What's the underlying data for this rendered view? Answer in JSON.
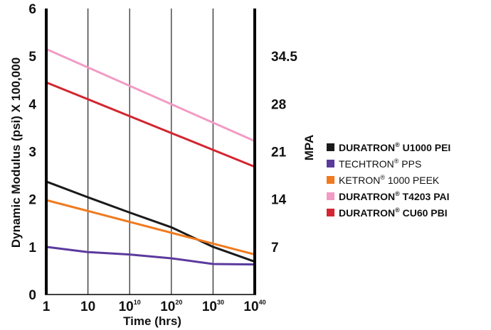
{
  "chart_data": {
    "type": "line",
    "x_ticks": [
      "1",
      "10",
      "10^10",
      "10^20",
      "10^30",
      "10^40"
    ],
    "x_tick_display": [
      {
        "base": "1",
        "exp": ""
      },
      {
        "base": "10",
        "exp": ""
      },
      {
        "base": "10",
        "exp": "10"
      },
      {
        "base": "10",
        "exp": "20"
      },
      {
        "base": "10",
        "exp": "30"
      },
      {
        "base": "10",
        "exp": "40"
      }
    ],
    "xlabel": "Time (hrs)",
    "ylabel": "Dynamic Modulus  (psi) X 100,000",
    "ylim": [
      0,
      6
    ],
    "y_ticks": [
      0,
      1,
      2,
      3,
      4,
      5,
      6
    ],
    "y2label": "MPA",
    "y2_ticks": [
      {
        "label": "7",
        "at": 1
      },
      {
        "label": "14",
        "at": 2
      },
      {
        "label": "21",
        "at": 3
      },
      {
        "label": "28",
        "at": 4
      },
      {
        "label": "34.5",
        "at": 5
      }
    ],
    "grid": "vertical",
    "legend_position": "right",
    "series": [
      {
        "name": "DURATRON® U1000 PEI",
        "name_main": "DURATRON",
        "name_rest": " U1000 PEI",
        "color": "#1a1a1a",
        "legend_bold": true,
        "points": [
          [
            0,
            2.37
          ],
          [
            1,
            2.04
          ],
          [
            2,
            1.72
          ],
          [
            3,
            1.41
          ],
          [
            4,
            1.0
          ],
          [
            5,
            0.69
          ]
        ]
      },
      {
        "name": "TECHTRON® PPS",
        "name_main": "TECHTRON",
        "name_rest": " PPS",
        "color": "#5b3a9e",
        "legend_bold": false,
        "points": [
          [
            0,
            1.0
          ],
          [
            1,
            0.89
          ],
          [
            2,
            0.84
          ],
          [
            3,
            0.76
          ],
          [
            4,
            0.64
          ],
          [
            5,
            0.63
          ]
        ]
      },
      {
        "name": "KETRON® 1000 PEEK",
        "name_main": "KETRON",
        "name_rest": " 1000 PEEK",
        "color": "#f07a1e",
        "legend_bold": false,
        "points": [
          [
            0,
            1.98
          ],
          [
            5,
            0.84
          ]
        ]
      },
      {
        "name": "DURATRON® T4203 PAI",
        "name_main": "DURATRON",
        "name_rest": " T4203 PAI",
        "color": "#f29bc4",
        "legend_bold": true,
        "points": [
          [
            0,
            5.15
          ],
          [
            5,
            3.22
          ]
        ]
      },
      {
        "name": "DURATRON® CU60 PBI",
        "name_main": "DURATRON",
        "name_rest": " CU60 PBI",
        "color": "#d32630",
        "legend_bold": true,
        "points": [
          [
            0,
            4.45
          ],
          [
            5,
            2.68
          ]
        ]
      }
    ]
  }
}
